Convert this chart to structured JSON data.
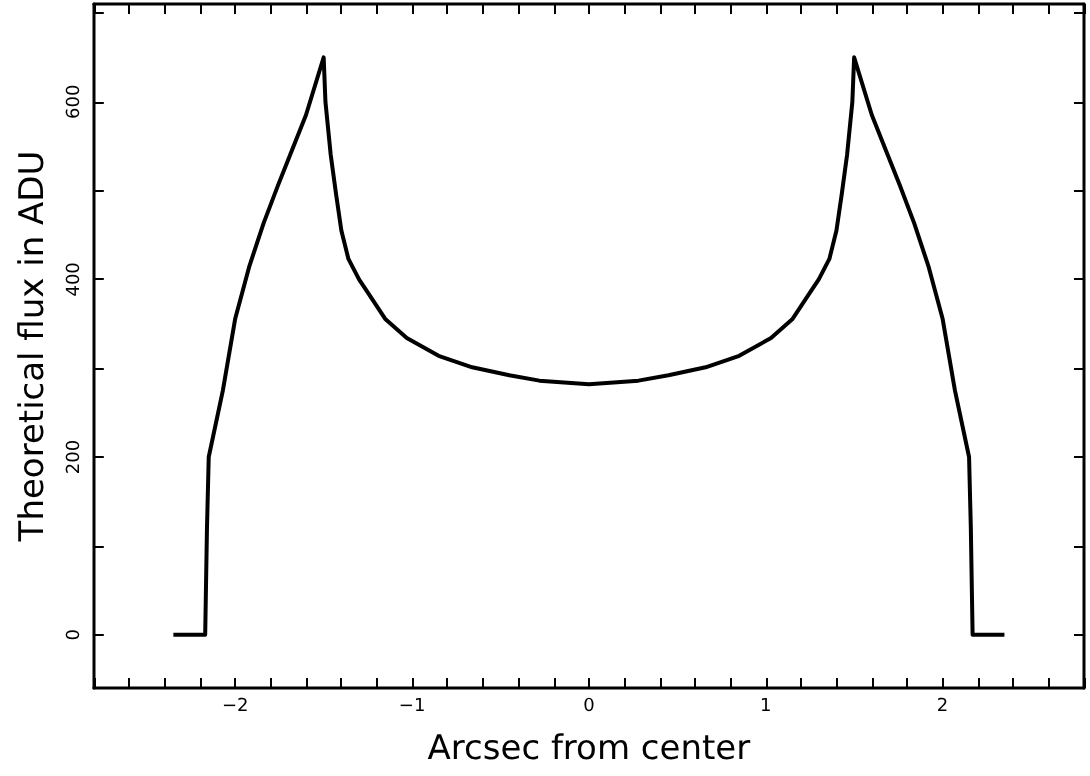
{
  "chart_data": {
    "type": "line",
    "xlabel": "Arcsec from center",
    "ylabel": "Theoretical flux in ADU",
    "xlim": [
      -2.8,
      2.8
    ],
    "ylim": [
      -60,
      710
    ],
    "xticks": [
      {
        "value": -2.8,
        "label": null
      },
      {
        "value": -2.6,
        "label": null
      },
      {
        "value": -2.4,
        "label": null
      },
      {
        "value": -2.2,
        "label": null
      },
      {
        "value": -2,
        "label": "−2"
      },
      {
        "value": -1.8,
        "label": null
      },
      {
        "value": -1.6,
        "label": null
      },
      {
        "value": -1.4,
        "label": null
      },
      {
        "value": -1.2,
        "label": null
      },
      {
        "value": -1,
        "label": "−1"
      },
      {
        "value": -0.8,
        "label": null
      },
      {
        "value": -0.6,
        "label": null
      },
      {
        "value": -0.4,
        "label": null
      },
      {
        "value": -0.2,
        "label": null
      },
      0,
      {
        "value": 0.2,
        "label": null
      },
      {
        "value": 0.4,
        "label": null
      },
      {
        "value": 0.6,
        "label": null
      },
      {
        "value": 0.8,
        "label": null
      },
      1,
      {
        "value": 1.2,
        "label": null
      },
      {
        "value": 1.4,
        "label": null
      },
      {
        "value": 1.6,
        "label": null
      },
      {
        "value": 1.8,
        "label": null
      },
      2,
      {
        "value": 2.2,
        "label": null
      },
      {
        "value": 2.4,
        "label": null
      },
      {
        "value": 2.6,
        "label": null
      },
      {
        "value": 2.8,
        "label": null
      }
    ],
    "yticks": [
      0,
      {
        "value": 100,
        "label": null
      },
      200,
      {
        "value": 300,
        "label": null
      },
      400,
      {
        "value": 500,
        "label": null
      },
      600,
      {
        "value": 700,
        "label": null
      }
    ],
    "grid": false,
    "marker": "none",
    "line_style": "solid",
    "series": [
      {
        "color": "#000000",
        "x": [
          -2.35,
          -2.17,
          -2.16,
          -2.15,
          -2.07,
          -2.0,
          -1.92,
          -1.84,
          -1.76,
          -1.69,
          -1.6,
          -1.5,
          -1.49,
          -1.46,
          -1.43,
          -1.4,
          -1.36,
          -1.3,
          -1.25,
          -1.15,
          -1.03,
          -0.85,
          -0.66,
          -0.45,
          -0.28,
          0,
          0.28,
          0.45,
          0.66,
          0.85,
          1.03,
          1.15,
          1.25,
          1.3,
          1.36,
          1.4,
          1.43,
          1.46,
          1.49,
          1.5,
          1.6,
          1.69,
          1.76,
          1.84,
          1.92,
          2.0,
          2.07,
          2.15,
          2.16,
          2.17,
          2.35
        ],
        "values": [
          0,
          0,
          120,
          200,
          275,
          356,
          415,
          463,
          505,
          540,
          585,
          650,
          600,
          540,
          496,
          455,
          423,
          400,
          385,
          355,
          334,
          314,
          301,
          292,
          286,
          282,
          286,
          292,
          301,
          314,
          334,
          355,
          385,
          400,
          423,
          455,
          496,
          540,
          600,
          650,
          585,
          540,
          505,
          463,
          415,
          356,
          275,
          200,
          120,
          0,
          0
        ]
      }
    ]
  }
}
